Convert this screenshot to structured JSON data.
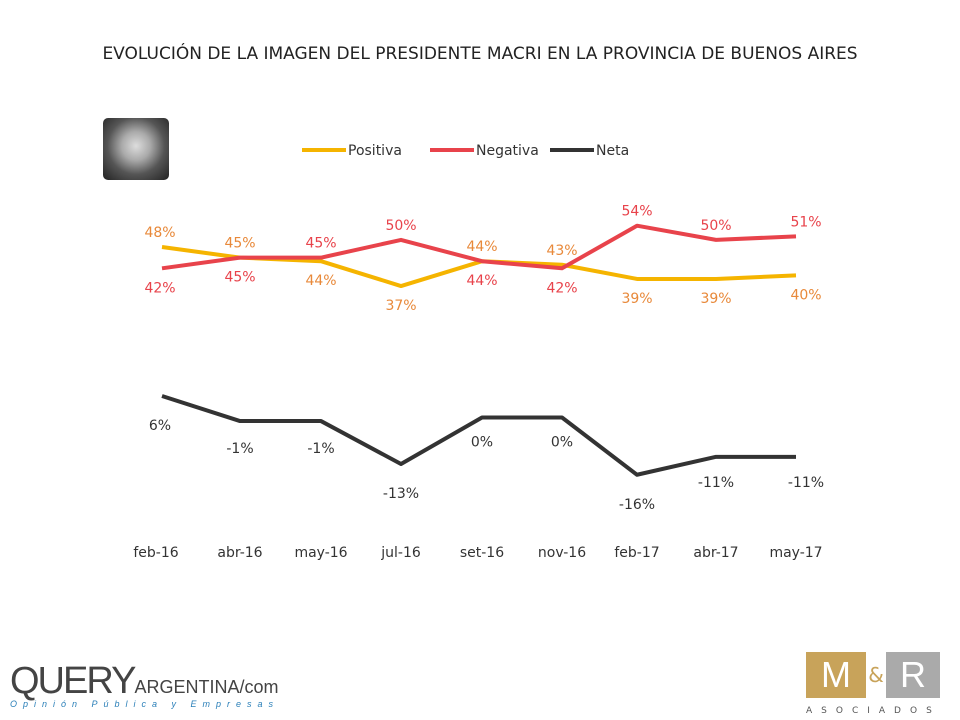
{
  "chart_data": {
    "type": "line",
    "title": "EVOLUCIÓN DE LA IMAGEN DEL PRESIDENTE MACRI EN LA PROVINCIA DE BUENOS AIRES",
    "categories": [
      "feb-16",
      "abr-16",
      "may-16",
      "jul-16",
      "set-16",
      "nov-16",
      "feb-17",
      "abr-17",
      "may-17"
    ],
    "legend_position": "top",
    "grid": false,
    "series": [
      {
        "name": "Positiva",
        "color": "#F5B400",
        "label_color": "#E8893A",
        "values": [
          48,
          45,
          44,
          37,
          44,
          43,
          39,
          39,
          40
        ]
      },
      {
        "name": "Negativa",
        "color": "#E8434B",
        "label_color": "#E8434B",
        "values": [
          42,
          45,
          45,
          50,
          44,
          42,
          54,
          50,
          51
        ]
      },
      {
        "name": "Neta",
        "color": "#333333",
        "label_color": "#333333",
        "values": [
          6,
          -1,
          -1,
          -13,
          0,
          0,
          -16,
          -11,
          -11
        ]
      }
    ]
  },
  "logos": {
    "query": {
      "main": "QUERY",
      "sub": "ARGENTINA/com",
      "tagline": "Opinión Pública y Empresas"
    },
    "mr": {
      "m": "M",
      "amp": "&",
      "r": "R",
      "sub": "ASOCIADOS"
    }
  }
}
